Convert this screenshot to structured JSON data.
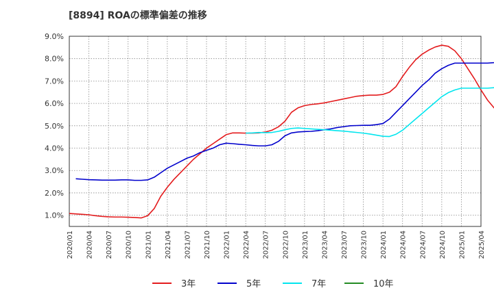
{
  "chart_data": {
    "type": "line",
    "title": "[8894]  ROAの標準偏差の推移",
    "xlabel": "",
    "ylabel": "",
    "ylim": [
      0.5,
      9.0
    ],
    "yticks": [
      "1.0%",
      "2.0%",
      "3.0%",
      "4.0%",
      "5.0%",
      "6.0%",
      "7.0%",
      "8.0%",
      "9.0%"
    ],
    "ytick_values": [
      1,
      2,
      3,
      4,
      5,
      6,
      7,
      8,
      9
    ],
    "xticks": [
      "2020/01",
      "2020/04",
      "2020/07",
      "2020/10",
      "2021/01",
      "2021/04",
      "2021/07",
      "2021/10",
      "2022/01",
      "2022/04",
      "2022/07",
      "2022/10",
      "2023/01",
      "2023/04",
      "2023/07",
      "2023/10",
      "2024/01",
      "2024/04",
      "2024/07",
      "2024/10",
      "2025/01",
      "2025/04"
    ],
    "grid": true,
    "legend_position": "bottom",
    "series": [
      {
        "name": "3年",
        "color": "#e31a1c",
        "start_month_index": 0,
        "values": [
          1.08,
          1.06,
          1.04,
          1.02,
          0.98,
          0.95,
          0.93,
          0.92,
          0.92,
          0.91,
          0.9,
          0.88,
          0.98,
          1.3,
          1.85,
          2.25,
          2.6,
          2.9,
          3.2,
          3.5,
          3.75,
          4.0,
          4.2,
          4.4,
          4.6,
          4.68,
          4.68,
          4.67,
          4.67,
          4.68,
          4.72,
          4.8,
          4.95,
          5.2,
          5.6,
          5.8,
          5.9,
          5.95,
          5.98,
          6.02,
          6.08,
          6.14,
          6.2,
          6.26,
          6.32,
          6.35,
          6.37,
          6.37,
          6.4,
          6.5,
          6.75,
          7.2,
          7.6,
          7.95,
          8.2,
          8.38,
          8.52,
          8.6,
          8.55,
          8.35,
          8.0,
          7.55,
          7.1,
          6.6,
          6.15,
          5.8,
          5.58
        ]
      },
      {
        "name": "5年",
        "color": "#0000cc",
        "start_month_index": 0,
        "values": [
          null,
          2.63,
          2.61,
          2.59,
          2.58,
          2.57,
          2.57,
          2.57,
          2.58,
          2.58,
          2.56,
          2.56,
          2.58,
          2.7,
          2.9,
          3.1,
          3.25,
          3.4,
          3.55,
          3.65,
          3.8,
          3.9,
          4.0,
          4.15,
          4.22,
          4.2,
          4.17,
          4.15,
          4.12,
          4.1,
          4.1,
          4.15,
          4.3,
          4.55,
          4.68,
          4.72,
          4.74,
          4.75,
          4.78,
          4.82,
          4.86,
          4.92,
          4.96,
          5.0,
          5.01,
          5.02,
          5.02,
          5.05,
          5.1,
          5.3,
          5.6,
          5.9,
          6.2,
          6.5,
          6.8,
          7.05,
          7.35,
          7.55,
          7.7,
          7.8,
          7.8,
          7.8,
          7.8,
          7.8,
          7.8,
          7.82,
          7.86
        ]
      },
      {
        "name": "7年",
        "color": "#00e5ee",
        "start_month_index": 0,
        "values": [
          null,
          null,
          null,
          null,
          null,
          null,
          null,
          null,
          null,
          null,
          null,
          null,
          null,
          null,
          null,
          null,
          null,
          null,
          null,
          null,
          null,
          null,
          null,
          null,
          null,
          null,
          null,
          4.67,
          4.68,
          4.7,
          4.69,
          4.7,
          4.75,
          4.82,
          4.88,
          4.9,
          4.88,
          4.86,
          4.84,
          4.82,
          4.8,
          4.78,
          4.76,
          4.73,
          4.7,
          4.67,
          4.63,
          4.58,
          4.53,
          4.52,
          4.62,
          4.8,
          5.05,
          5.3,
          5.55,
          5.8,
          6.05,
          6.3,
          6.48,
          6.6,
          6.68,
          6.68,
          6.68,
          6.68,
          6.68,
          6.7,
          6.72
        ]
      },
      {
        "name": "10年",
        "color": "#228b22",
        "start_month_index": 0,
        "values": []
      }
    ]
  }
}
